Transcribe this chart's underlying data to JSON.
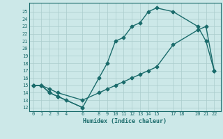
{
  "xlabel": "Humidex (Indice chaleur)",
  "bg_color": "#cce8e8",
  "grid_color": "#aacccc",
  "line_color": "#1a6b6b",
  "xlim": [
    -0.5,
    22.8
  ],
  "ylim": [
    11.5,
    26.2
  ],
  "xticks": [
    0,
    1,
    2,
    3,
    4,
    6,
    8,
    9,
    10,
    11,
    12,
    13,
    14,
    15,
    17,
    18,
    20,
    21,
    22
  ],
  "yticks": [
    12,
    13,
    14,
    15,
    16,
    17,
    18,
    19,
    20,
    21,
    22,
    23,
    24,
    25
  ],
  "line1_x": [
    0,
    1,
    2,
    3,
    6,
    8,
    9,
    10,
    11,
    12,
    13,
    14,
    15,
    17,
    20,
    21,
    22
  ],
  "line1_y": [
    15,
    15,
    14,
    13.5,
    12,
    16,
    18,
    21,
    21.5,
    23,
    23.5,
    25,
    25.5,
    25,
    23,
    21,
    17
  ],
  "line2_x": [
    0,
    1,
    2,
    3,
    6,
    8,
    9,
    10,
    11,
    12,
    13,
    14,
    15,
    17,
    20,
    21,
    22
  ],
  "line2_y": [
    15,
    15,
    14.5,
    14,
    13,
    14,
    14.5,
    15,
    15.5,
    16,
    16.5,
    17,
    17.5,
    20.5,
    22.5,
    23,
    17
  ],
  "line3_x": [
    0,
    1,
    2,
    3,
    4,
    6
  ],
  "line3_y": [
    15,
    15,
    14,
    13.5,
    13,
    12
  ]
}
